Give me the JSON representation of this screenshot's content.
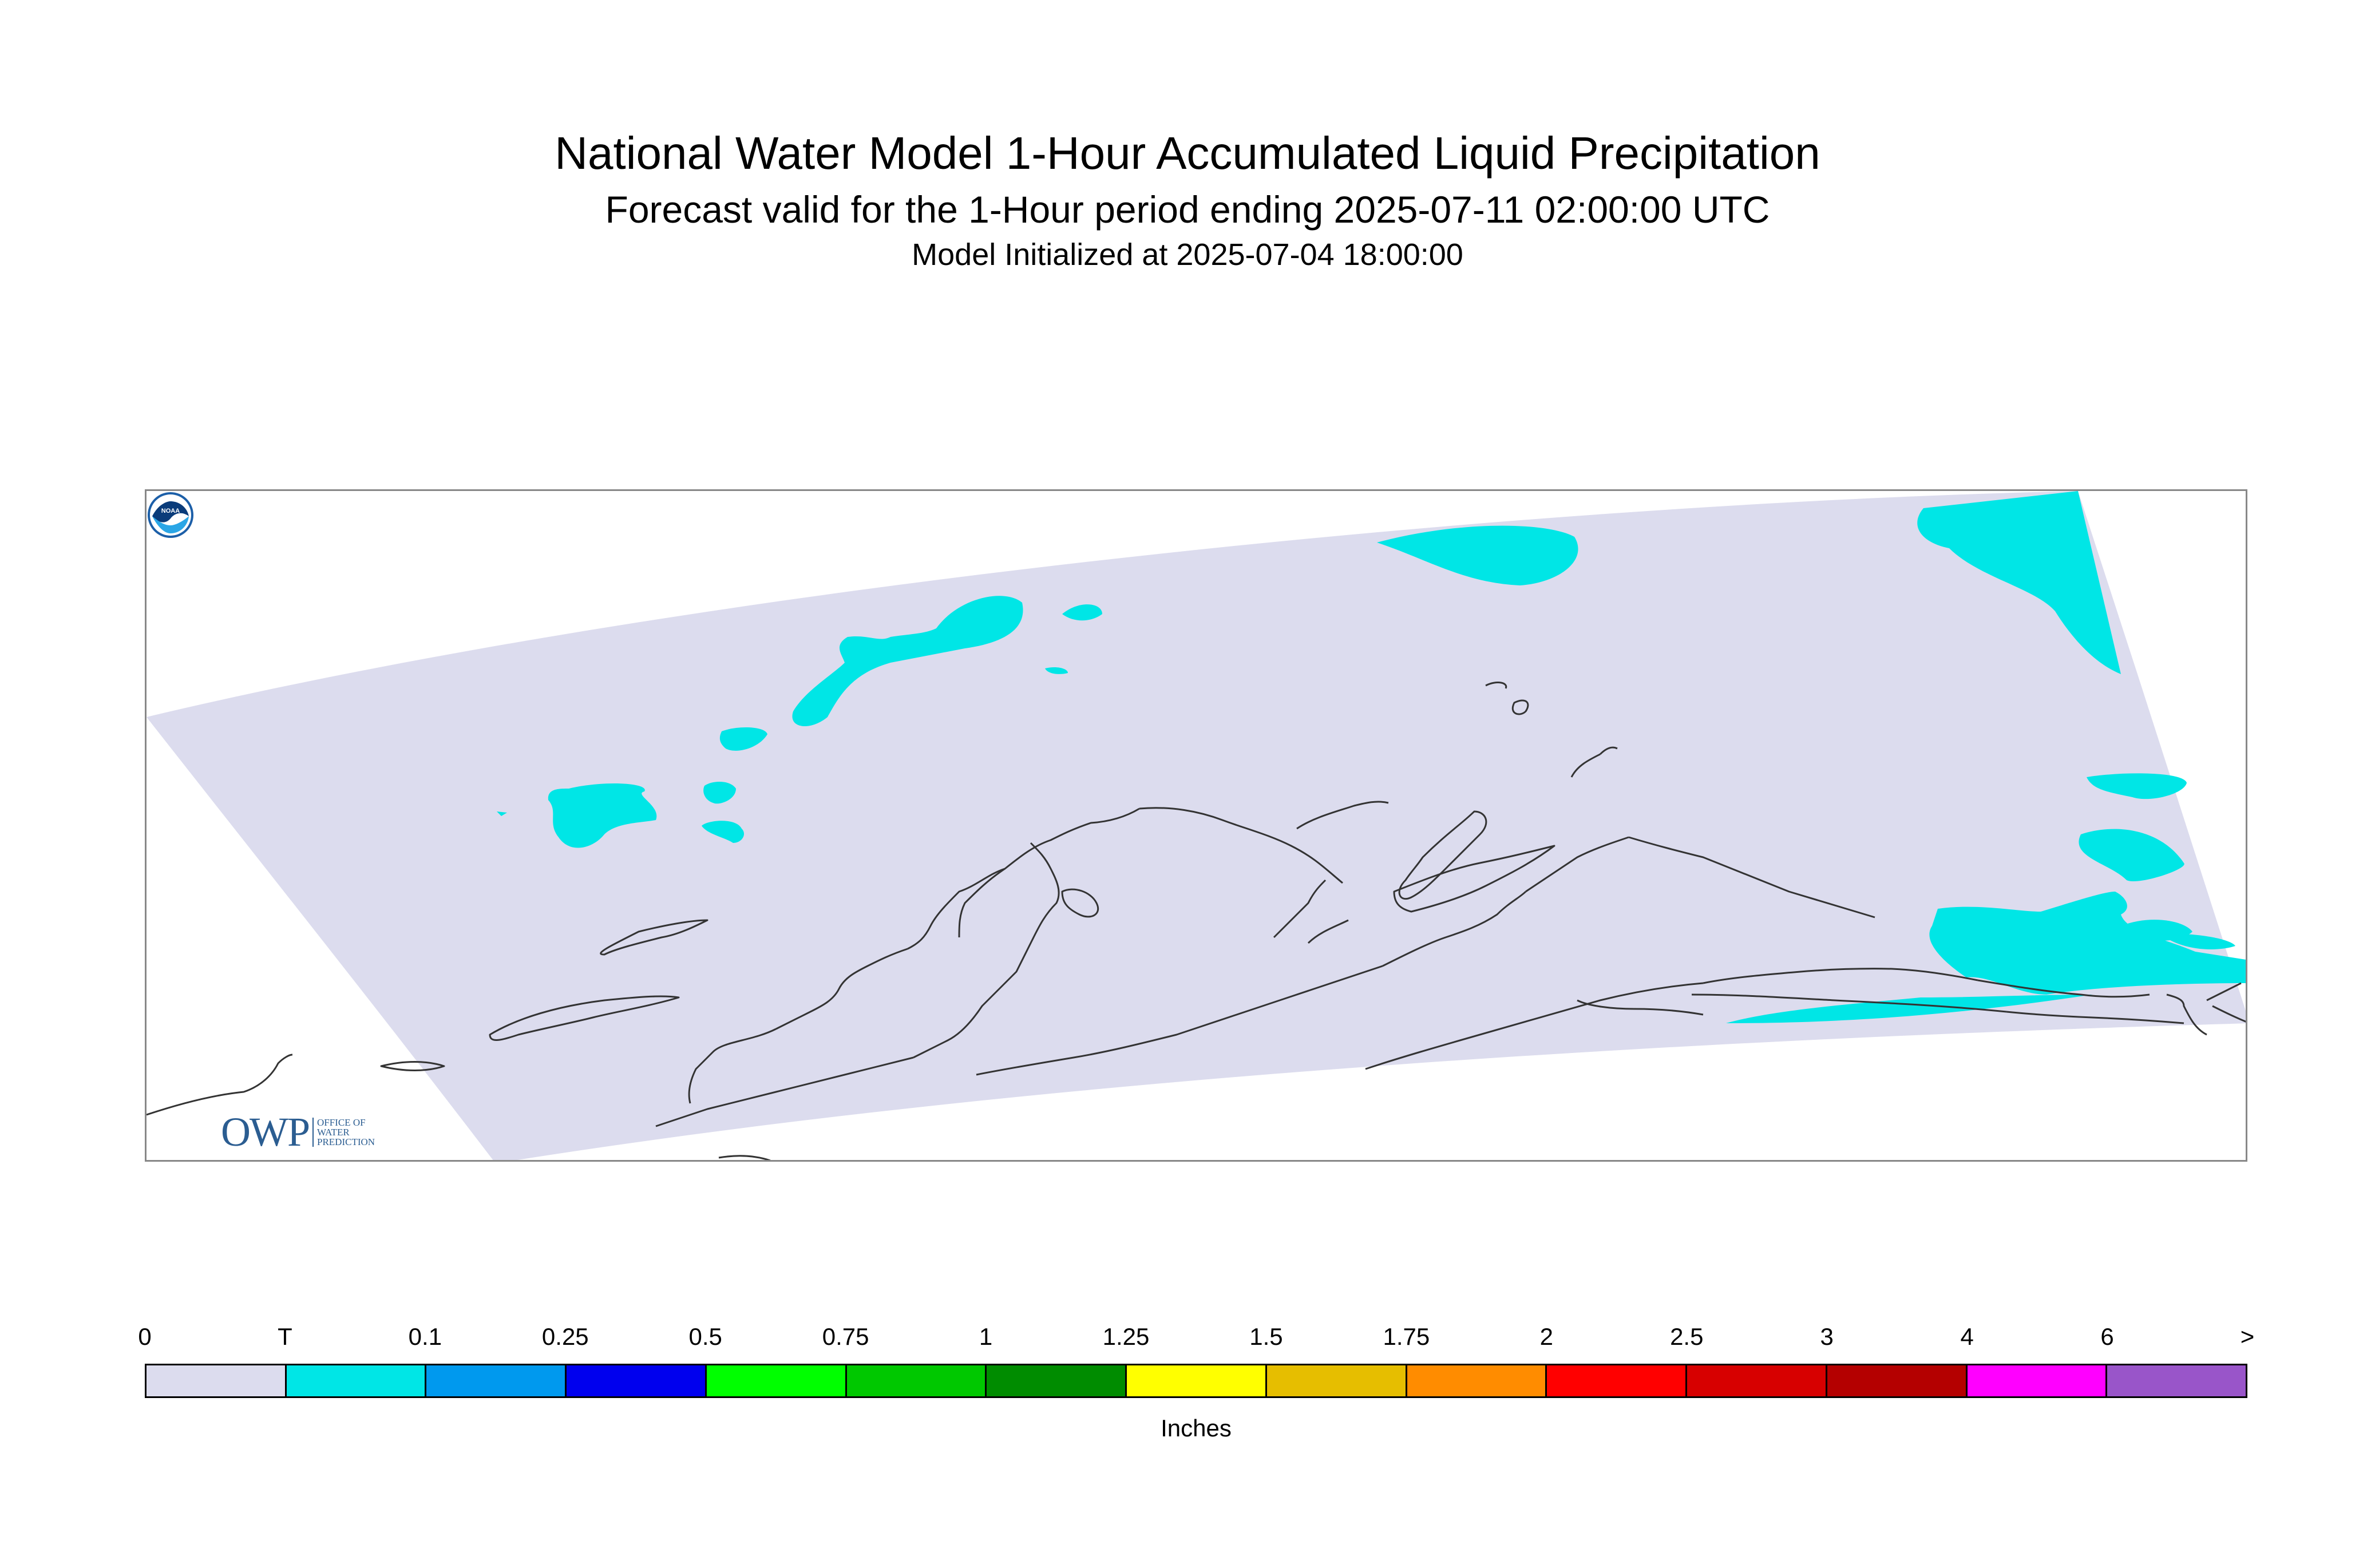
{
  "header": {
    "title": "National Water Model 1-Hour Accumulated Liquid Precipitation",
    "subtitle": "Forecast valid for the 1-Hour period ending 2025-07-11 02:00:00 UTC",
    "initialized": "Model Initialized at 2025-07-04 18:00:00"
  },
  "logos": {
    "owp_letters": "OWP",
    "owp_text": [
      "OFFICE OF",
      "WATER",
      "PREDICTION"
    ],
    "noaa_text": "NOAA"
  },
  "legend": {
    "units": "Inches",
    "labels": [
      "0",
      "T",
      "0.1",
      "0.25",
      "0.5",
      "0.75",
      "1",
      "1.25",
      "1.5",
      "1.75",
      "2",
      "2.5",
      "3",
      "4",
      "6",
      ">"
    ],
    "colors": [
      "#dcdcee",
      "#00e6e6",
      "#0099ee",
      "#0000ee",
      "#00ff00",
      "#00c800",
      "#008c00",
      "#ffff00",
      "#e6be00",
      "#ff8c00",
      "#ff0000",
      "#d70000",
      "#b40000",
      "#ff00ff",
      "#9955c9"
    ]
  },
  "map": {
    "domain_fill": "#dcdcee",
    "precip_fill": "#00e6e6",
    "coast_color": "#333333"
  }
}
